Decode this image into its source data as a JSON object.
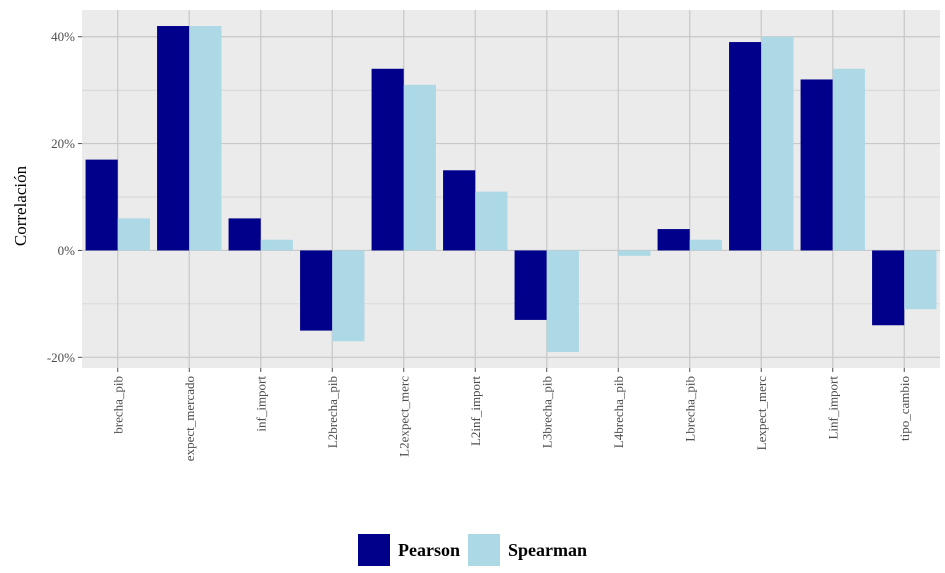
{
  "chart_data": {
    "type": "bar",
    "ylabel": "Correlación",
    "xlabel": "",
    "y_format": "percent",
    "ylim": [
      -0.22,
      0.45
    ],
    "yticks": [
      -0.2,
      0,
      0.2,
      0.4
    ],
    "ytick_labels": [
      "-20%",
      "0%",
      "20%",
      "40%"
    ],
    "categories": [
      "brecha_pib",
      "expect_mercado",
      "inf_import",
      "L2brecha_pib",
      "L2expect_merc",
      "L2inf_import",
      "L3brecha_pib",
      "L4brecha_pib",
      "Lbrecha_pib",
      "Lexpect_merc",
      "Linf_import",
      "tipo_cambio"
    ],
    "series": [
      {
        "name": "Pearson",
        "color": "#00008b",
        "values": [
          0.17,
          0.42,
          0.06,
          -0.15,
          0.34,
          0.15,
          -0.13,
          0.0,
          0.04,
          0.39,
          0.32,
          -0.14
        ]
      },
      {
        "name": "Spearman",
        "color": "#add8e6",
        "values": [
          0.06,
          0.42,
          0.02,
          -0.17,
          0.31,
          0.11,
          -0.19,
          -0.01,
          0.02,
          0.4,
          0.34,
          -0.11
        ]
      }
    ],
    "grid": true,
    "panel_background": "#ebebeb",
    "gridline_color": "#c8c8c8",
    "legend_position": "bottom"
  }
}
